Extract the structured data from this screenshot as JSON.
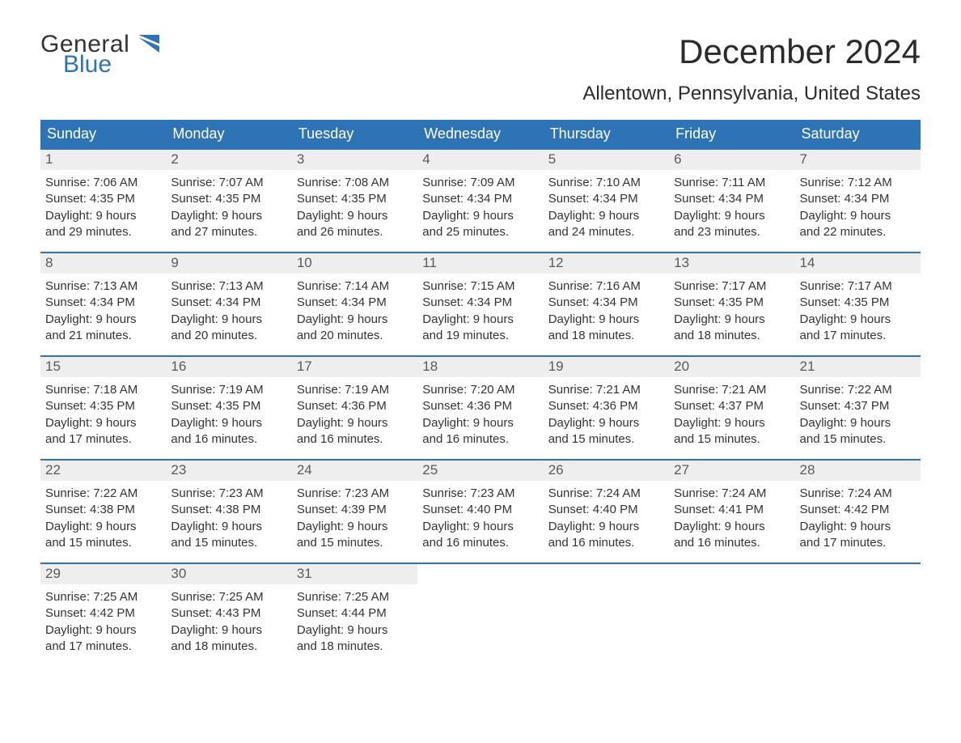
{
  "colors": {
    "brand_blue": "#2d73b6",
    "header_text": "#ffffff",
    "daynum_bg": "#eeeeee",
    "daynum_text": "#5a5a5a",
    "body_text": "#333333",
    "background": "#ffffff"
  },
  "logo": {
    "line1": "General",
    "line2": "Blue"
  },
  "title": "December 2024",
  "location": "Allentown, Pennsylvania, United States",
  "weekdays": [
    "Sunday",
    "Monday",
    "Tuesday",
    "Wednesday",
    "Thursday",
    "Friday",
    "Saturday"
  ],
  "weeks": [
    [
      {
        "n": "1",
        "sr": "Sunrise: 7:06 AM",
        "ss": "Sunset: 4:35 PM",
        "d1": "Daylight: 9 hours",
        "d2": "and 29 minutes."
      },
      {
        "n": "2",
        "sr": "Sunrise: 7:07 AM",
        "ss": "Sunset: 4:35 PM",
        "d1": "Daylight: 9 hours",
        "d2": "and 27 minutes."
      },
      {
        "n": "3",
        "sr": "Sunrise: 7:08 AM",
        "ss": "Sunset: 4:35 PM",
        "d1": "Daylight: 9 hours",
        "d2": "and 26 minutes."
      },
      {
        "n": "4",
        "sr": "Sunrise: 7:09 AM",
        "ss": "Sunset: 4:34 PM",
        "d1": "Daylight: 9 hours",
        "d2": "and 25 minutes."
      },
      {
        "n": "5",
        "sr": "Sunrise: 7:10 AM",
        "ss": "Sunset: 4:34 PM",
        "d1": "Daylight: 9 hours",
        "d2": "and 24 minutes."
      },
      {
        "n": "6",
        "sr": "Sunrise: 7:11 AM",
        "ss": "Sunset: 4:34 PM",
        "d1": "Daylight: 9 hours",
        "d2": "and 23 minutes."
      },
      {
        "n": "7",
        "sr": "Sunrise: 7:12 AM",
        "ss": "Sunset: 4:34 PM",
        "d1": "Daylight: 9 hours",
        "d2": "and 22 minutes."
      }
    ],
    [
      {
        "n": "8",
        "sr": "Sunrise: 7:13 AM",
        "ss": "Sunset: 4:34 PM",
        "d1": "Daylight: 9 hours",
        "d2": "and 21 minutes."
      },
      {
        "n": "9",
        "sr": "Sunrise: 7:13 AM",
        "ss": "Sunset: 4:34 PM",
        "d1": "Daylight: 9 hours",
        "d2": "and 20 minutes."
      },
      {
        "n": "10",
        "sr": "Sunrise: 7:14 AM",
        "ss": "Sunset: 4:34 PM",
        "d1": "Daylight: 9 hours",
        "d2": "and 20 minutes."
      },
      {
        "n": "11",
        "sr": "Sunrise: 7:15 AM",
        "ss": "Sunset: 4:34 PM",
        "d1": "Daylight: 9 hours",
        "d2": "and 19 minutes."
      },
      {
        "n": "12",
        "sr": "Sunrise: 7:16 AM",
        "ss": "Sunset: 4:34 PM",
        "d1": "Daylight: 9 hours",
        "d2": "and 18 minutes."
      },
      {
        "n": "13",
        "sr": "Sunrise: 7:17 AM",
        "ss": "Sunset: 4:35 PM",
        "d1": "Daylight: 9 hours",
        "d2": "and 18 minutes."
      },
      {
        "n": "14",
        "sr": "Sunrise: 7:17 AM",
        "ss": "Sunset: 4:35 PM",
        "d1": "Daylight: 9 hours",
        "d2": "and 17 minutes."
      }
    ],
    [
      {
        "n": "15",
        "sr": "Sunrise: 7:18 AM",
        "ss": "Sunset: 4:35 PM",
        "d1": "Daylight: 9 hours",
        "d2": "and 17 minutes."
      },
      {
        "n": "16",
        "sr": "Sunrise: 7:19 AM",
        "ss": "Sunset: 4:35 PM",
        "d1": "Daylight: 9 hours",
        "d2": "and 16 minutes."
      },
      {
        "n": "17",
        "sr": "Sunrise: 7:19 AM",
        "ss": "Sunset: 4:36 PM",
        "d1": "Daylight: 9 hours",
        "d2": "and 16 minutes."
      },
      {
        "n": "18",
        "sr": "Sunrise: 7:20 AM",
        "ss": "Sunset: 4:36 PM",
        "d1": "Daylight: 9 hours",
        "d2": "and 16 minutes."
      },
      {
        "n": "19",
        "sr": "Sunrise: 7:21 AM",
        "ss": "Sunset: 4:36 PM",
        "d1": "Daylight: 9 hours",
        "d2": "and 15 minutes."
      },
      {
        "n": "20",
        "sr": "Sunrise: 7:21 AM",
        "ss": "Sunset: 4:37 PM",
        "d1": "Daylight: 9 hours",
        "d2": "and 15 minutes."
      },
      {
        "n": "21",
        "sr": "Sunrise: 7:22 AM",
        "ss": "Sunset: 4:37 PM",
        "d1": "Daylight: 9 hours",
        "d2": "and 15 minutes."
      }
    ],
    [
      {
        "n": "22",
        "sr": "Sunrise: 7:22 AM",
        "ss": "Sunset: 4:38 PM",
        "d1": "Daylight: 9 hours",
        "d2": "and 15 minutes."
      },
      {
        "n": "23",
        "sr": "Sunrise: 7:23 AM",
        "ss": "Sunset: 4:38 PM",
        "d1": "Daylight: 9 hours",
        "d2": "and 15 minutes."
      },
      {
        "n": "24",
        "sr": "Sunrise: 7:23 AM",
        "ss": "Sunset: 4:39 PM",
        "d1": "Daylight: 9 hours",
        "d2": "and 15 minutes."
      },
      {
        "n": "25",
        "sr": "Sunrise: 7:23 AM",
        "ss": "Sunset: 4:40 PM",
        "d1": "Daylight: 9 hours",
        "d2": "and 16 minutes."
      },
      {
        "n": "26",
        "sr": "Sunrise: 7:24 AM",
        "ss": "Sunset: 4:40 PM",
        "d1": "Daylight: 9 hours",
        "d2": "and 16 minutes."
      },
      {
        "n": "27",
        "sr": "Sunrise: 7:24 AM",
        "ss": "Sunset: 4:41 PM",
        "d1": "Daylight: 9 hours",
        "d2": "and 16 minutes."
      },
      {
        "n": "28",
        "sr": "Sunrise: 7:24 AM",
        "ss": "Sunset: 4:42 PM",
        "d1": "Daylight: 9 hours",
        "d2": "and 17 minutes."
      }
    ],
    [
      {
        "n": "29",
        "sr": "Sunrise: 7:25 AM",
        "ss": "Sunset: 4:42 PM",
        "d1": "Daylight: 9 hours",
        "d2": "and 17 minutes."
      },
      {
        "n": "30",
        "sr": "Sunrise: 7:25 AM",
        "ss": "Sunset: 4:43 PM",
        "d1": "Daylight: 9 hours",
        "d2": "and 18 minutes."
      },
      {
        "n": "31",
        "sr": "Sunrise: 7:25 AM",
        "ss": "Sunset: 4:44 PM",
        "d1": "Daylight: 9 hours",
        "d2": "and 18 minutes."
      },
      {
        "empty": true
      },
      {
        "empty": true
      },
      {
        "empty": true
      },
      {
        "empty": true
      }
    ]
  ]
}
